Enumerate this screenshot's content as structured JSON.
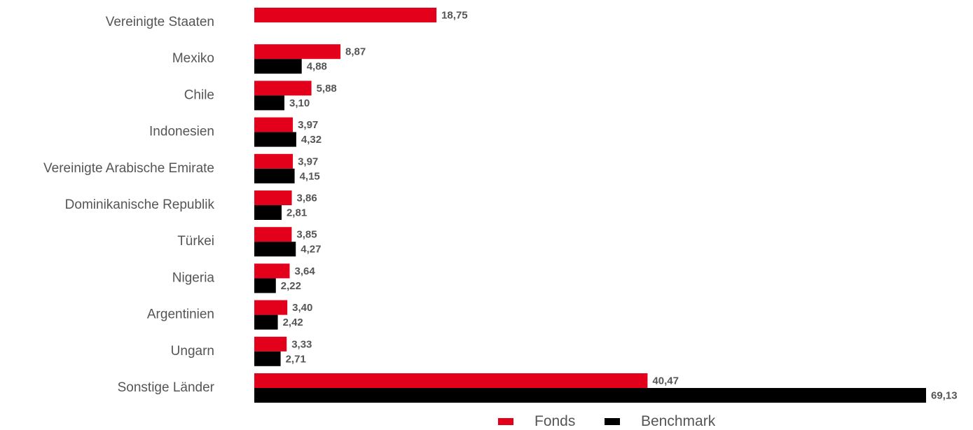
{
  "chart_data": {
    "type": "bar",
    "orientation": "horizontal",
    "categories": [
      "Vereinigte Staaten",
      "Mexiko",
      "Chile",
      "Indonesien",
      "Vereinigte Arabische Emirate",
      "Dominikanische Republik",
      "Türkei",
      "Nigeria",
      "Argentinien",
      "Ungarn",
      "Sonstige Länder"
    ],
    "series": [
      {
        "name": "Fonds",
        "color": "#e2001a",
        "values": [
          18.75,
          8.87,
          5.88,
          3.97,
          3.97,
          3.86,
          3.85,
          3.64,
          3.4,
          3.33,
          40.47
        ],
        "labels": [
          "18,75",
          "8,87",
          "5,88",
          "3,97",
          "3,97",
          "3,86",
          "3,85",
          "3,64",
          "3,40",
          "3,33",
          "40,47"
        ]
      },
      {
        "name": "Benchmark",
        "color": "#000000",
        "values": [
          null,
          4.88,
          3.1,
          4.32,
          4.15,
          2.81,
          4.27,
          2.22,
          2.42,
          2.71,
          69.13
        ],
        "labels": [
          "",
          "4,88",
          "3,10",
          "4,32",
          "4,15",
          "2,81",
          "4,27",
          "2,22",
          "2,42",
          "2,71",
          "69,13"
        ]
      }
    ],
    "xlim": [
      0,
      69.13
    ],
    "grid": false,
    "legend_position": "bottom-center"
  }
}
